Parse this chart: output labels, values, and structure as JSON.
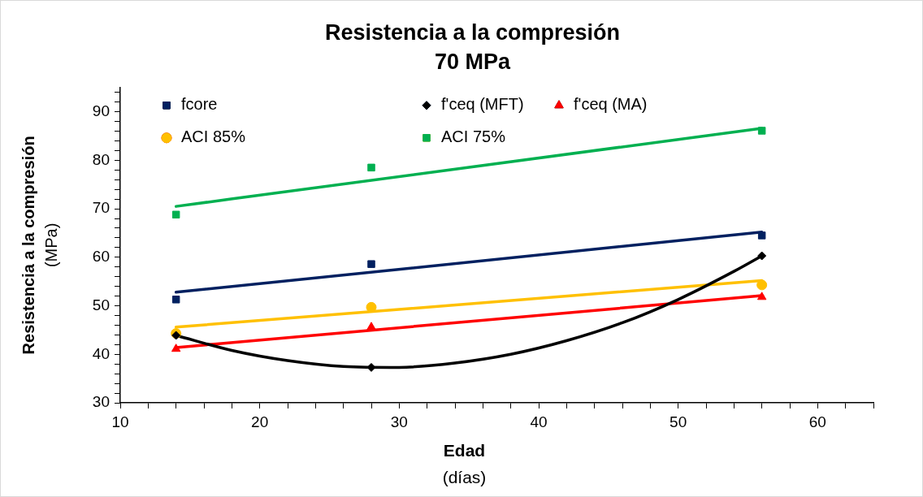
{
  "chart_data": {
    "type": "scatter",
    "title": "Resistencia a la compresión",
    "subtitle": "70 MPa",
    "xlabel": "Edad\n(días)",
    "ylabel": "Resistencia a la compresión\n(MPa)",
    "x": [
      14,
      28,
      56
    ],
    "series": [
      {
        "name": "fcore",
        "color": "#002060",
        "marker": "square",
        "values": [
          51.3,
          58.6,
          64.5
        ]
      },
      {
        "name": "f'ceq (MFT)",
        "color": "#000000",
        "marker": "diamond",
        "values": [
          43.9,
          37.3,
          60.3
        ]
      },
      {
        "name": "f'ceq (MA)",
        "color": "#ff0000",
        "marker": "triangle",
        "values": [
          41.1,
          45.6,
          51.8
        ]
      },
      {
        "name": "ACI 85%",
        "color": "#ffc000",
        "marker": "circle",
        "values": [
          44.3,
          49.7,
          54.3
        ]
      },
      {
        "name": "ACI 75%",
        "color": "#00b050",
        "marker": "square",
        "values": [
          68.8,
          78.5,
          86.1
        ]
      },
      {
        "type": "line",
        "color": "#002060",
        "marker": "none",
        "x": [
          14,
          56
        ],
        "values": [
          52.8,
          65.2
        ]
      },
      {
        "type": "line",
        "color": "#000000",
        "marker": "none",
        "x": [
          14,
          18,
          22,
          26,
          30,
          34,
          38,
          42,
          46,
          50,
          54,
          56
        ],
        "values": [
          43.9,
          40.8,
          38.7,
          37.5,
          37.3,
          38.2,
          40.0,
          42.8,
          46.5,
          51.3,
          57.1,
          60.3
        ]
      },
      {
        "type": "line",
        "color": "#ff0000",
        "marker": "none",
        "x": [
          14,
          56
        ],
        "values": [
          41.4,
          52.1
        ]
      },
      {
        "type": "line",
        "color": "#ffc000",
        "marker": "none",
        "x": [
          14,
          56
        ],
        "values": [
          45.6,
          55.2
        ]
      },
      {
        "type": "line",
        "color": "#00b050",
        "marker": "none",
        "x": [
          14,
          56
        ],
        "values": [
          70.5,
          86.6
        ]
      }
    ],
    "xlim": [
      10,
      64
    ],
    "xticks": [
      10,
      {
        "value": 12,
        "label": null
      },
      {
        "value": 14,
        "label": null
      },
      {
        "value": 16,
        "label": null
      },
      {
        "value": 18,
        "label": null
      },
      20,
      {
        "value": 22,
        "label": null
      },
      {
        "value": 24,
        "label": null
      },
      {
        "value": 26,
        "label": null
      },
      {
        "value": 28,
        "label": null
      },
      30,
      {
        "value": 32,
        "label": null
      },
      {
        "value": 34,
        "label": null
      },
      {
        "value": 36,
        "label": null
      },
      {
        "value": 38,
        "label": null
      },
      40,
      {
        "value": 42,
        "label": null
      },
      {
        "value": 44,
        "label": null
      },
      {
        "value": 46,
        "label": null
      },
      {
        "value": 48,
        "label": null
      },
      50,
      {
        "value": 52,
        "label": null
      },
      {
        "value": 54,
        "label": null
      },
      {
        "value": 56,
        "label": null
      },
      {
        "value": 58,
        "label": null
      },
      60,
      {
        "value": 62,
        "label": null
      },
      {
        "value": 64,
        "label": null
      }
    ],
    "ylim": [
      30,
      95
    ],
    "yticks": [
      30,
      {
        "value": 32,
        "label": null
      },
      {
        "value": 34,
        "label": null
      },
      {
        "value": 36,
        "label": null
      },
      {
        "value": 38,
        "label": null
      },
      40,
      {
        "value": 42,
        "label": null
      },
      {
        "value": 44,
        "label": null
      },
      {
        "value": 46,
        "label": null
      },
      {
        "value": 48,
        "label": null
      },
      50,
      {
        "value": 52,
        "label": null
      },
      {
        "value": 54,
        "label": null
      },
      {
        "value": 56,
        "label": null
      },
      {
        "value": 58,
        "label": null
      },
      60,
      {
        "value": 62,
        "label": null
      },
      {
        "value": 64,
        "label": null
      },
      {
        "value": 66,
        "label": null
      },
      {
        "value": 68,
        "label": null
      },
      70,
      {
        "value": 72,
        "label": null
      },
      {
        "value": 74,
        "label": null
      },
      {
        "value": 76,
        "label": null
      },
      {
        "value": 78,
        "label": null
      },
      80,
      {
        "value": 82,
        "label": null
      },
      {
        "value": 84,
        "label": null
      },
      {
        "value": 86,
        "label": null
      },
      {
        "value": 88,
        "label": null
      },
      90,
      {
        "value": 92,
        "label": null
      },
      {
        "value": 94,
        "label": null
      }
    ],
    "grid": false,
    "legend": "top left"
  }
}
